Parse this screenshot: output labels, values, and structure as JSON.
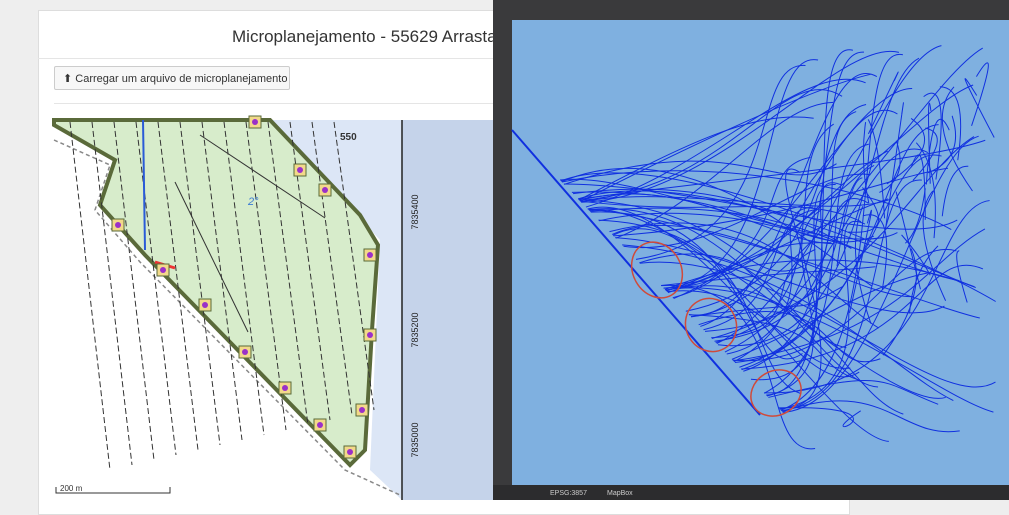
{
  "header": {
    "title": "Microplanejamento - 55629 Arrasta"
  },
  "upload_button": {
    "label": "Carregar um arquivo de microplanejamento"
  },
  "map": {
    "labels": [
      "550",
      "2°"
    ],
    "northings": [
      "7835400",
      "7835200",
      "7835000"
    ],
    "scale_bar": "200 m"
  },
  "gis_window": {
    "status_bar": {
      "crs": "EPSG:3857",
      "basemap": "MapBox"
    }
  }
}
